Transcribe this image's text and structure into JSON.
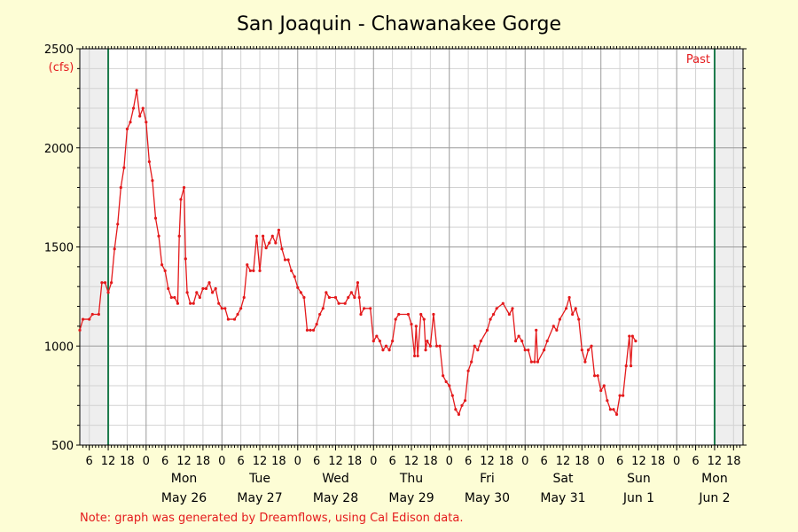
{
  "page": {
    "title": "San Joaquin - Chawanakee Gorge",
    "y_unit": "(cfs)",
    "past_label": "Past",
    "note": "Note: graph was generated by Dreamflows, using Cal Edison data."
  },
  "colors": {
    "background": "#fdfdd5",
    "plot_background": "#ffffff",
    "shade": "#eeeeee",
    "line": "#e41a1c",
    "marker_line": "#1b7a4a",
    "grid_major": "#9a9a9a",
    "grid_minor": "#d2d2d2",
    "note": "#e41a1c"
  },
  "chart_data": {
    "type": "line",
    "title": "San Joaquin - Chawanakee Gorge",
    "ylabel": "(cfs)",
    "ylim": [
      500,
      2500
    ],
    "yticks": [
      500,
      1000,
      1500,
      2000,
      2500
    ],
    "xlim": [
      "2025-05-25 03:00",
      "2025-06-02 12:00"
    ],
    "x_tick_labels_hour": [
      "6",
      "12",
      "18",
      "0",
      "6",
      "12",
      "18",
      "0",
      "6",
      "12",
      "18",
      "0",
      "6",
      "12",
      "18",
      "0",
      "6",
      "12",
      "18",
      "0",
      "6",
      "12",
      "18",
      "0",
      "6",
      "12",
      "18",
      "0",
      "6",
      "12",
      "18",
      "0",
      "6",
      "12",
      "18",
      "0",
      "6",
      "12",
      "18"
    ],
    "day_labels": [
      {
        "weekday": "Mon",
        "date": "May 26"
      },
      {
        "weekday": "Tue",
        "date": "May 27"
      },
      {
        "weekday": "Wed",
        "date": "May 28"
      },
      {
        "weekday": "Thu",
        "date": "May 29"
      },
      {
        "weekday": "Fri",
        "date": "May 30"
      },
      {
        "weekday": "Sat",
        "date": "May 31"
      },
      {
        "weekday": "Sun",
        "date": "Jun 1"
      },
      {
        "weekday": "Mon",
        "date": "Jun 2"
      }
    ],
    "shaded_ranges": [
      [
        "2025-05-25 03:00",
        "2025-05-25 12:00"
      ],
      [
        "2025-06-02 12:00",
        "2025-06-02 21:00"
      ]
    ],
    "vertical_markers": [
      "2025-05-25 12:00",
      "2025-06-02 12:00"
    ],
    "annotation": "Past",
    "grid": true,
    "legend": "none",
    "series": [
      {
        "points": [
          [
            "2025-05-25 03:00",
            1080
          ],
          [
            "2025-05-25 04:00",
            1135
          ],
          [
            "2025-05-25 06:00",
            1135
          ],
          [
            "2025-05-25 07:00",
            1160
          ],
          [
            "2025-05-25 09:00",
            1160
          ],
          [
            "2025-05-25 10:00",
            1320
          ],
          [
            "2025-05-25 11:00",
            1320
          ],
          [
            "2025-05-25 12:00",
            1270
          ],
          [
            "2025-05-25 13:00",
            1320
          ],
          [
            "2025-05-25 14:00",
            1490
          ],
          [
            "2025-05-25 15:00",
            1615
          ],
          [
            "2025-05-25 16:00",
            1800
          ],
          [
            "2025-05-25 17:00",
            1900
          ],
          [
            "2025-05-25 18:00",
            2095
          ],
          [
            "2025-05-25 19:00",
            2130
          ],
          [
            "2025-05-25 20:00",
            2200
          ],
          [
            "2025-05-25 21:00",
            2290
          ],
          [
            "2025-05-25 22:00",
            2160
          ],
          [
            "2025-05-25 23:00",
            2200
          ],
          [
            "2025-05-26 00:00",
            2130
          ],
          [
            "2025-05-26 01:00",
            1930
          ],
          [
            "2025-05-26 02:00",
            1835
          ],
          [
            "2025-05-26 03:00",
            1645
          ],
          [
            "2025-05-26 04:00",
            1555
          ],
          [
            "2025-05-26 05:00",
            1410
          ],
          [
            "2025-05-26 06:00",
            1380
          ],
          [
            "2025-05-26 07:00",
            1290
          ],
          [
            "2025-05-26 08:00",
            1245
          ],
          [
            "2025-05-26 09:00",
            1245
          ],
          [
            "2025-05-26 10:00",
            1215
          ],
          [
            "2025-05-26 10:30",
            1555
          ],
          [
            "2025-05-26 11:00",
            1740
          ],
          [
            "2025-05-26 12:00",
            1800
          ],
          [
            "2025-05-26 12:30",
            1440
          ],
          [
            "2025-05-26 13:00",
            1270
          ],
          [
            "2025-05-26 14:00",
            1215
          ],
          [
            "2025-05-26 15:00",
            1215
          ],
          [
            "2025-05-26 16:00",
            1270
          ],
          [
            "2025-05-26 17:00",
            1245
          ],
          [
            "2025-05-26 18:00",
            1290
          ],
          [
            "2025-05-26 19:00",
            1290
          ],
          [
            "2025-05-26 20:00",
            1320
          ],
          [
            "2025-05-26 21:00",
            1270
          ],
          [
            "2025-05-26 22:00",
            1290
          ],
          [
            "2025-05-26 23:00",
            1215
          ],
          [
            "2025-05-27 00:00",
            1190
          ],
          [
            "2025-05-27 01:00",
            1190
          ],
          [
            "2025-05-27 02:00",
            1135
          ],
          [
            "2025-05-27 04:00",
            1135
          ],
          [
            "2025-05-27 05:00",
            1160
          ],
          [
            "2025-05-27 06:00",
            1190
          ],
          [
            "2025-05-27 07:00",
            1245
          ],
          [
            "2025-05-27 08:00",
            1410
          ],
          [
            "2025-05-27 09:00",
            1380
          ],
          [
            "2025-05-27 10:00",
            1380
          ],
          [
            "2025-05-27 11:00",
            1555
          ],
          [
            "2025-05-27 12:00",
            1380
          ],
          [
            "2025-05-27 13:00",
            1555
          ],
          [
            "2025-05-27 14:00",
            1495
          ],
          [
            "2025-05-27 15:00",
            1520
          ],
          [
            "2025-05-27 16:00",
            1555
          ],
          [
            "2025-05-27 17:00",
            1520
          ],
          [
            "2025-05-27 18:00",
            1585
          ],
          [
            "2025-05-27 19:00",
            1490
          ],
          [
            "2025-05-27 20:00",
            1435
          ],
          [
            "2025-05-27 21:00",
            1435
          ],
          [
            "2025-05-27 22:00",
            1380
          ],
          [
            "2025-05-27 23:00",
            1350
          ],
          [
            "2025-05-28 00:00",
            1295
          ],
          [
            "2025-05-28 01:00",
            1270
          ],
          [
            "2025-05-28 02:00",
            1245
          ],
          [
            "2025-05-28 03:00",
            1080
          ],
          [
            "2025-05-28 04:00",
            1080
          ],
          [
            "2025-05-28 05:00",
            1080
          ],
          [
            "2025-05-28 06:00",
            1110
          ],
          [
            "2025-05-28 07:00",
            1160
          ],
          [
            "2025-05-28 08:00",
            1190
          ],
          [
            "2025-05-28 09:00",
            1270
          ],
          [
            "2025-05-28 10:00",
            1245
          ],
          [
            "2025-05-28 12:00",
            1245
          ],
          [
            "2025-05-28 13:00",
            1215
          ],
          [
            "2025-05-28 15:00",
            1215
          ],
          [
            "2025-05-28 16:00",
            1245
          ],
          [
            "2025-05-28 17:00",
            1270
          ],
          [
            "2025-05-28 18:00",
            1245
          ],
          [
            "2025-05-28 19:00",
            1320
          ],
          [
            "2025-05-28 19:30",
            1245
          ],
          [
            "2025-05-28 20:00",
            1160
          ],
          [
            "2025-05-28 21:00",
            1190
          ],
          [
            "2025-05-28 23:00",
            1190
          ],
          [
            "2025-05-29 00:00",
            1025
          ],
          [
            "2025-05-29 01:00",
            1050
          ],
          [
            "2025-05-29 02:00",
            1025
          ],
          [
            "2025-05-29 03:00",
            980
          ],
          [
            "2025-05-29 04:00",
            1000
          ],
          [
            "2025-05-29 05:00",
            980
          ],
          [
            "2025-05-29 06:00",
            1025
          ],
          [
            "2025-05-29 07:00",
            1135
          ],
          [
            "2025-05-29 08:00",
            1160
          ],
          [
            "2025-05-29 11:00",
            1160
          ],
          [
            "2025-05-29 12:00",
            1110
          ],
          [
            "2025-05-29 13:00",
            950
          ],
          [
            "2025-05-29 13:30",
            1100
          ],
          [
            "2025-05-29 14:00",
            950
          ],
          [
            "2025-05-29 15:00",
            1160
          ],
          [
            "2025-05-29 16:00",
            1135
          ],
          [
            "2025-05-29 16:30",
            980
          ],
          [
            "2025-05-29 17:00",
            1025
          ],
          [
            "2025-05-29 18:00",
            1000
          ],
          [
            "2025-05-29 19:00",
            1160
          ],
          [
            "2025-05-29 20:00",
            1000
          ],
          [
            "2025-05-29 21:00",
            1000
          ],
          [
            "2025-05-29 22:00",
            850
          ],
          [
            "2025-05-29 23:00",
            820
          ],
          [
            "2025-05-30 00:00",
            800
          ],
          [
            "2025-05-30 01:00",
            750
          ],
          [
            "2025-05-30 02:00",
            680
          ],
          [
            "2025-05-30 03:00",
            655
          ],
          [
            "2025-05-30 04:00",
            700
          ],
          [
            "2025-05-30 05:00",
            725
          ],
          [
            "2025-05-30 06:00",
            875
          ],
          [
            "2025-05-30 07:00",
            920
          ],
          [
            "2025-05-30 08:00",
            1000
          ],
          [
            "2025-05-30 09:00",
            980
          ],
          [
            "2025-05-30 10:00",
            1025
          ],
          [
            "2025-05-30 12:00",
            1080
          ],
          [
            "2025-05-30 13:00",
            1135
          ],
          [
            "2025-05-30 14:00",
            1160
          ],
          [
            "2025-05-30 15:00",
            1190
          ],
          [
            "2025-05-30 17:00",
            1215
          ],
          [
            "2025-05-30 19:00",
            1160
          ],
          [
            "2025-05-30 20:00",
            1190
          ],
          [
            "2025-05-30 21:00",
            1025
          ],
          [
            "2025-05-30 22:00",
            1050
          ],
          [
            "2025-05-30 23:00",
            1025
          ],
          [
            "2025-05-31 00:00",
            980
          ],
          [
            "2025-05-31 01:00",
            980
          ],
          [
            "2025-05-31 02:00",
            920
          ],
          [
            "2025-05-31 03:00",
            920
          ],
          [
            "2025-05-31 03:30",
            1080
          ],
          [
            "2025-05-31 04:00",
            920
          ],
          [
            "2025-05-31 06:00",
            980
          ],
          [
            "2025-05-31 07:00",
            1025
          ],
          [
            "2025-05-31 09:00",
            1100
          ],
          [
            "2025-05-31 10:00",
            1080
          ],
          [
            "2025-05-31 11:00",
            1135
          ],
          [
            "2025-05-31 13:00",
            1190
          ],
          [
            "2025-05-31 14:00",
            1245
          ],
          [
            "2025-05-31 15:00",
            1160
          ],
          [
            "2025-05-31 16:00",
            1190
          ],
          [
            "2025-05-31 17:00",
            1135
          ],
          [
            "2025-05-31 18:00",
            980
          ],
          [
            "2025-05-31 19:00",
            920
          ],
          [
            "2025-05-31 20:00",
            980
          ],
          [
            "2025-05-31 21:00",
            1000
          ],
          [
            "2025-05-31 22:00",
            850
          ],
          [
            "2025-05-31 23:00",
            850
          ],
          [
            "2025-06-01 00:00",
            775
          ],
          [
            "2025-06-01 01:00",
            800
          ],
          [
            "2025-06-01 02:00",
            725
          ],
          [
            "2025-06-01 03:00",
            680
          ],
          [
            "2025-06-01 04:00",
            680
          ],
          [
            "2025-06-01 05:00",
            655
          ],
          [
            "2025-06-01 06:00",
            750
          ],
          [
            "2025-06-01 07:00",
            750
          ],
          [
            "2025-06-01 08:00",
            900
          ],
          [
            "2025-06-01 09:00",
            1050
          ],
          [
            "2025-06-01 09:30",
            900
          ],
          [
            "2025-06-01 10:00",
            1050
          ],
          [
            "2025-06-01 11:00",
            1025
          ]
        ]
      }
    ]
  }
}
